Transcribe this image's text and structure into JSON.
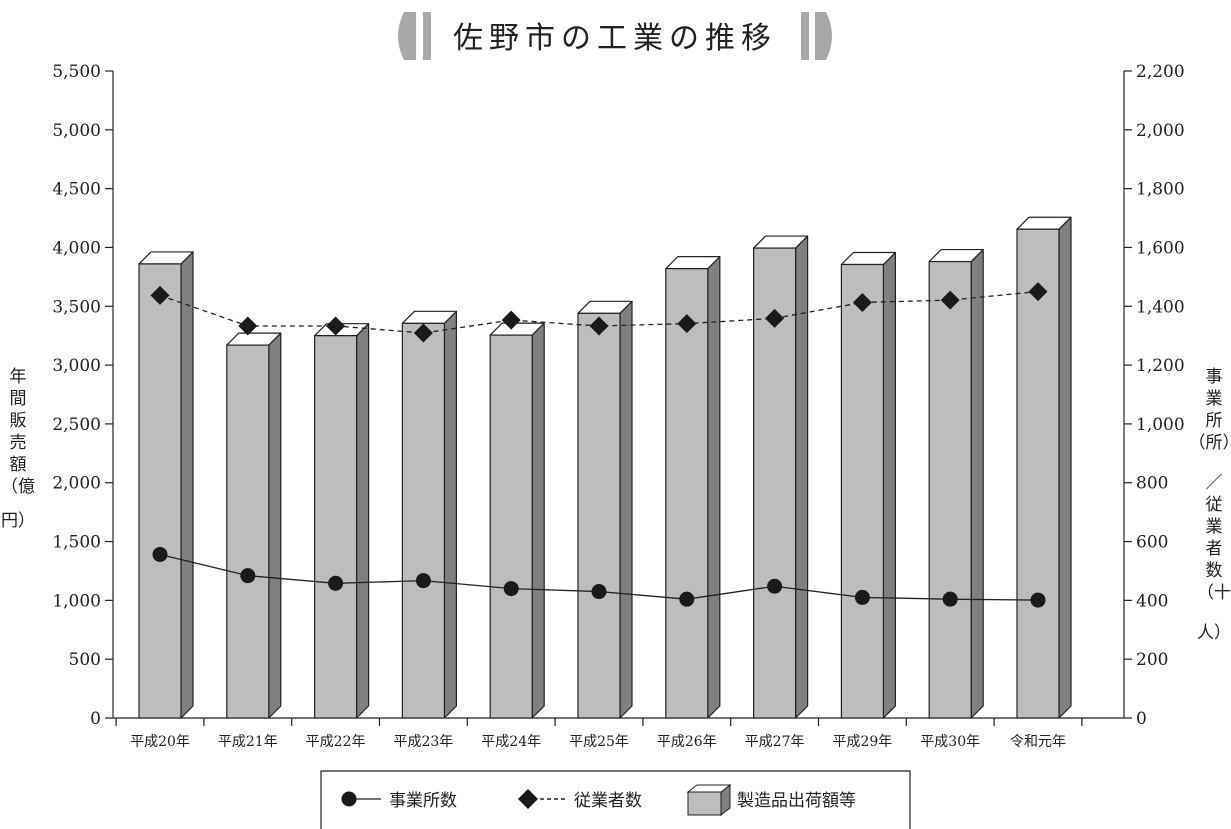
{
  "chart_data": {
    "type": "bar",
    "title": "佐野市の工業の推移",
    "categories": [
      "平成20年",
      "平成21年",
      "平成22年",
      "平成23年",
      "平成24年",
      "平成25年",
      "平成26年",
      "平成27年",
      "平成29年",
      "平成30年",
      "令和元年"
    ],
    "left_axis": {
      "label_chars": [
        "年",
        "間",
        "販",
        "売",
        "額",
        "（億",
        "円）"
      ],
      "ylim": [
        0,
        5500
      ],
      "ticks": [
        0,
        500,
        1000,
        1500,
        2000,
        2500,
        3000,
        3500,
        4000,
        4500,
        5000,
        5500
      ],
      "tick_labels": [
        "0",
        "500",
        "1,000",
        "1,500",
        "2,000",
        "2,500",
        "3,000",
        "3,500",
        "4,000",
        "4,500",
        "5,000",
        "5,500"
      ]
    },
    "right_axis": {
      "label_chars": [
        "事",
        "業",
        "所",
        "（所）",
        "／",
        "従",
        "業",
        "者",
        "数",
        "（十",
        "人）"
      ],
      "ylim": [
        0,
        2200
      ],
      "ticks": [
        0,
        200,
        400,
        600,
        800,
        1000,
        1200,
        1400,
        1600,
        1800,
        2000,
        2200
      ],
      "tick_labels": [
        "0",
        "200",
        "400",
        "600",
        "800",
        "1,000",
        "1,200",
        "1,400",
        "1,600",
        "1,800",
        "2,000",
        "2,200"
      ]
    },
    "series": [
      {
        "name": "製造品出荷額等",
        "type": "bar",
        "axis": "left",
        "values": [
          3860,
          3170,
          3250,
          3355,
          3255,
          3440,
          3820,
          3995,
          3855,
          3880,
          4155
        ]
      },
      {
        "name": "事業所数",
        "type": "line",
        "axis": "right",
        "style": "solid",
        "marker": "circle",
        "values": [
          556,
          484,
          458,
          467,
          440,
          430,
          404,
          448,
          410,
          404,
          401
        ]
      },
      {
        "name": "従業者数",
        "type": "line",
        "axis": "right",
        "style": "dashed",
        "marker": "diamond",
        "values": [
          1437,
          1333,
          1333,
          1309,
          1353,
          1333,
          1341,
          1359,
          1413,
          1421,
          1450
        ]
      }
    ],
    "legend": {
      "placement": "bottom-center",
      "items": [
        "事業所数",
        "従業者数",
        "製造品出荷額等"
      ]
    },
    "colors": {
      "bar_front": "#bdbdbd",
      "bar_top": "#ffffff",
      "bar_side": "#808080",
      "marker": "#1a1a1a",
      "title_deco": "#a8a8a8",
      "axis": "#222222"
    }
  }
}
